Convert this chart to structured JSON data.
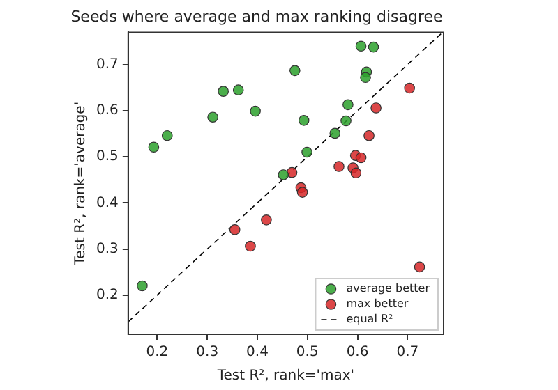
{
  "chart_data": {
    "type": "scatter",
    "title": "Seeds where average and max ranking disagree",
    "xlabel": "Test R², rank='max'",
    "ylabel": "Test R², rank='average'",
    "xlim": [
      0.142,
      0.772
    ],
    "ylim": [
      0.115,
      0.77
    ],
    "xticks": [
      0.2,
      0.3,
      0.4,
      0.5,
      0.6,
      0.7
    ],
    "yticks": [
      0.2,
      0.3,
      0.4,
      0.5,
      0.6,
      0.7
    ],
    "grid": false,
    "legend": "bottom right",
    "marker": "circle",
    "series": [
      {
        "name": "average better",
        "color": "#2ca02c",
        "x": [
          0.607,
          0.632,
          0.475,
          0.618,
          0.616,
          0.332,
          0.362,
          0.396,
          0.311,
          0.581,
          0.493,
          0.577,
          0.22,
          0.193,
          0.555,
          0.499,
          0.452,
          0.17
        ],
        "values": [
          0.74,
          0.738,
          0.687,
          0.684,
          0.672,
          0.642,
          0.645,
          0.599,
          0.586,
          0.613,
          0.579,
          0.578,
          0.546,
          0.521,
          0.551,
          0.51,
          0.461,
          0.22
        ]
      },
      {
        "name": "max better",
        "color": "#d62728",
        "x": [
          0.637,
          0.623,
          0.469,
          0.596,
          0.607,
          0.563,
          0.591,
          0.597,
          0.487,
          0.49,
          0.418,
          0.355,
          0.386,
          0.724,
          0.704
        ],
        "values": [
          0.606,
          0.546,
          0.466,
          0.503,
          0.498,
          0.479,
          0.476,
          0.465,
          0.433,
          0.423,
          0.363,
          0.342,
          0.306,
          0.261,
          0.649
        ]
      },
      {
        "name": "equal R²",
        "type": "line",
        "color": "#000000",
        "line_style": "dashed",
        "marker": "none",
        "x": [
          0.142,
          0.77
        ],
        "values": [
          0.142,
          0.77
        ]
      }
    ]
  }
}
